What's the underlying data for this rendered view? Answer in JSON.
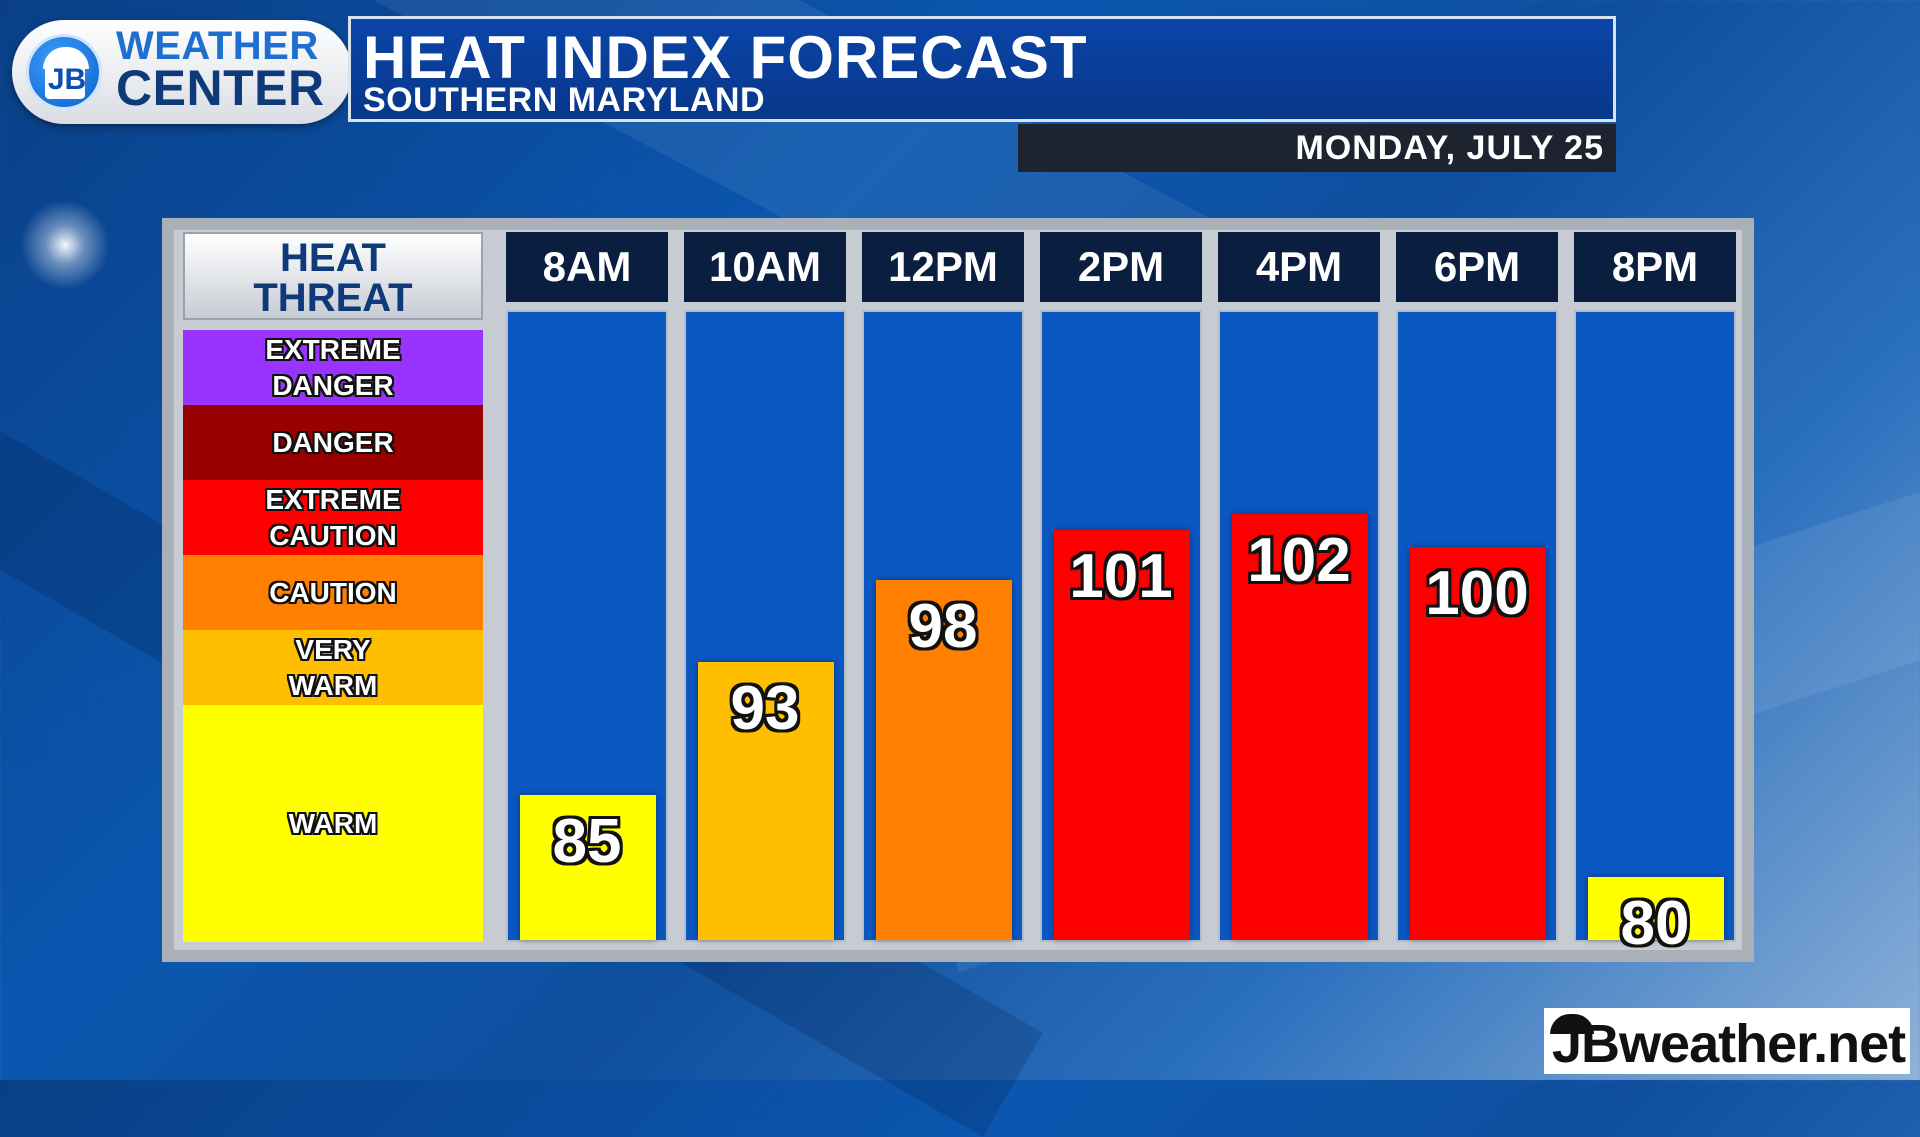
{
  "header": {
    "logo_line1": "WEATHER",
    "logo_line2": "CENTER",
    "logo_initials": "JB",
    "title": "HEAT INDEX FORECAST",
    "subtitle": "SOUTHERN MARYLAND",
    "date": "MONDAY, JULY 25"
  },
  "legend": {
    "title": "HEAT\nTHREAT",
    "levels": [
      {
        "label": "EXTREME\nDANGER",
        "color": "#9933ff"
      },
      {
        "label": "DANGER",
        "color": "#990000"
      },
      {
        "label": "EXTREME\nCAUTION",
        "color": "#ff0000"
      },
      {
        "label": "CAUTION",
        "color": "#ff7f00"
      },
      {
        "label": "VERY\nWARM",
        "color": "#ffbf00"
      },
      {
        "label": "WARM",
        "color": "#ffff00"
      }
    ]
  },
  "chart_data": {
    "type": "bar",
    "title": "HEAT INDEX FORECAST",
    "subtitle": "SOUTHERN MARYLAND",
    "categories": [
      "8AM",
      "10AM",
      "12PM",
      "2PM",
      "4PM",
      "6PM",
      "8PM"
    ],
    "values": [
      85,
      93,
      98,
      101,
      102,
      100,
      80
    ],
    "bar_colors": [
      "#ffff00",
      "#ffbf00",
      "#ff7f00",
      "#ff0000",
      "#ff0000",
      "#ff0000",
      "#ffff00"
    ],
    "column_background": "#0b57c2",
    "grid": false
  },
  "footer": {
    "brand": "JBweather.net"
  }
}
